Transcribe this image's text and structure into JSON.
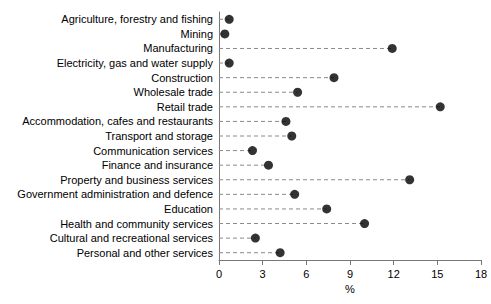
{
  "chart_data": {
    "type": "dot",
    "orientation": "horizontal",
    "x_label": "%",
    "categories": [
      "Agriculture, forestry and fishing",
      "Mining",
      "Manufacturing",
      "Electricity, gas and water supply",
      "Construction",
      "Wholesale trade",
      "Retail trade",
      "Accommodation, cafes and restaurants",
      "Transport and storage",
      "Communication services",
      "Finance and insurance",
      "Property and business services",
      "Government administration and defence",
      "Education",
      "Health and community services",
      "Cultural and recreational services",
      "Personal and other services"
    ],
    "values": [
      0.7,
      0.4,
      11.9,
      0.7,
      7.9,
      5.4,
      15.2,
      4.6,
      5.0,
      2.3,
      3.4,
      13.1,
      5.2,
      7.4,
      10.0,
      2.5,
      4.2
    ],
    "color": "#000000",
    "xlim": [
      0,
      18
    ],
    "xticks": [
      0,
      3,
      6,
      9,
      12,
      15,
      18
    ],
    "grid": false
  }
}
